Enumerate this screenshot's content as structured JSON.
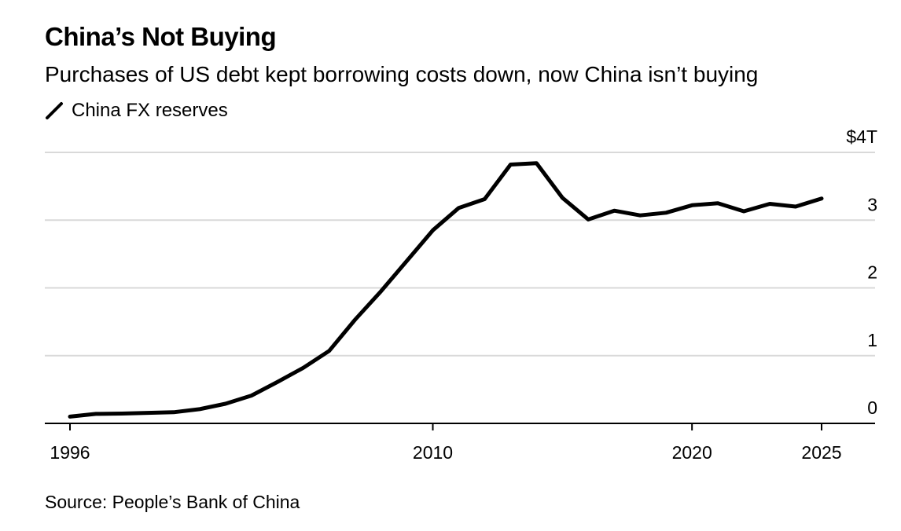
{
  "header": {
    "title": "China’s Not Buying",
    "subtitle": "Purchases of US debt kept borrowing costs down, now China isn’t buying"
  },
  "legend": {
    "label": "China FX reserves"
  },
  "source": "Source: People’s Bank of China",
  "colors": {
    "line": "#000000",
    "grid": "#d9d9d9",
    "axis": "#000000"
  },
  "chart_data": {
    "type": "line",
    "title": "China’s Not Buying",
    "subtitle": "Purchases of US debt kept borrowing costs down, now China isn’t buying",
    "xlabel": "",
    "ylabel": "",
    "xlim": [
      1995,
      2027
    ],
    "ylim": [
      0,
      4
    ],
    "x_ticks": [
      {
        "value": 1996,
        "label": "1996"
      },
      {
        "value": 2010,
        "label": "2010"
      },
      {
        "value": 2020,
        "label": "2020"
      },
      {
        "value": 2025,
        "label": "2025"
      }
    ],
    "y_ticks": [
      {
        "value": 0,
        "label": "0"
      },
      {
        "value": 1,
        "label": "1"
      },
      {
        "value": 2,
        "label": "2"
      },
      {
        "value": 3,
        "label": "3"
      },
      {
        "value": 4,
        "label": "$4T"
      }
    ],
    "grid": true,
    "legend_position": "top-left",
    "series": [
      {
        "name": "China FX reserves",
        "x": [
          1996,
          1997,
          1998,
          1999,
          2000,
          2001,
          2002,
          2003,
          2004,
          2005,
          2006,
          2007,
          2008,
          2009,
          2010,
          2011,
          2012,
          2013,
          2014,
          2015,
          2016,
          2017,
          2018,
          2019,
          2020,
          2021,
          2022,
          2023,
          2024,
          2025
        ],
        "values": [
          0.1,
          0.14,
          0.145,
          0.155,
          0.165,
          0.21,
          0.29,
          0.41,
          0.61,
          0.82,
          1.07,
          1.53,
          1.95,
          2.4,
          2.85,
          3.18,
          3.31,
          3.82,
          3.84,
          3.33,
          3.01,
          3.14,
          3.07,
          3.11,
          3.22,
          3.25,
          3.13,
          3.24,
          3.2,
          3.32
        ]
      }
    ]
  }
}
